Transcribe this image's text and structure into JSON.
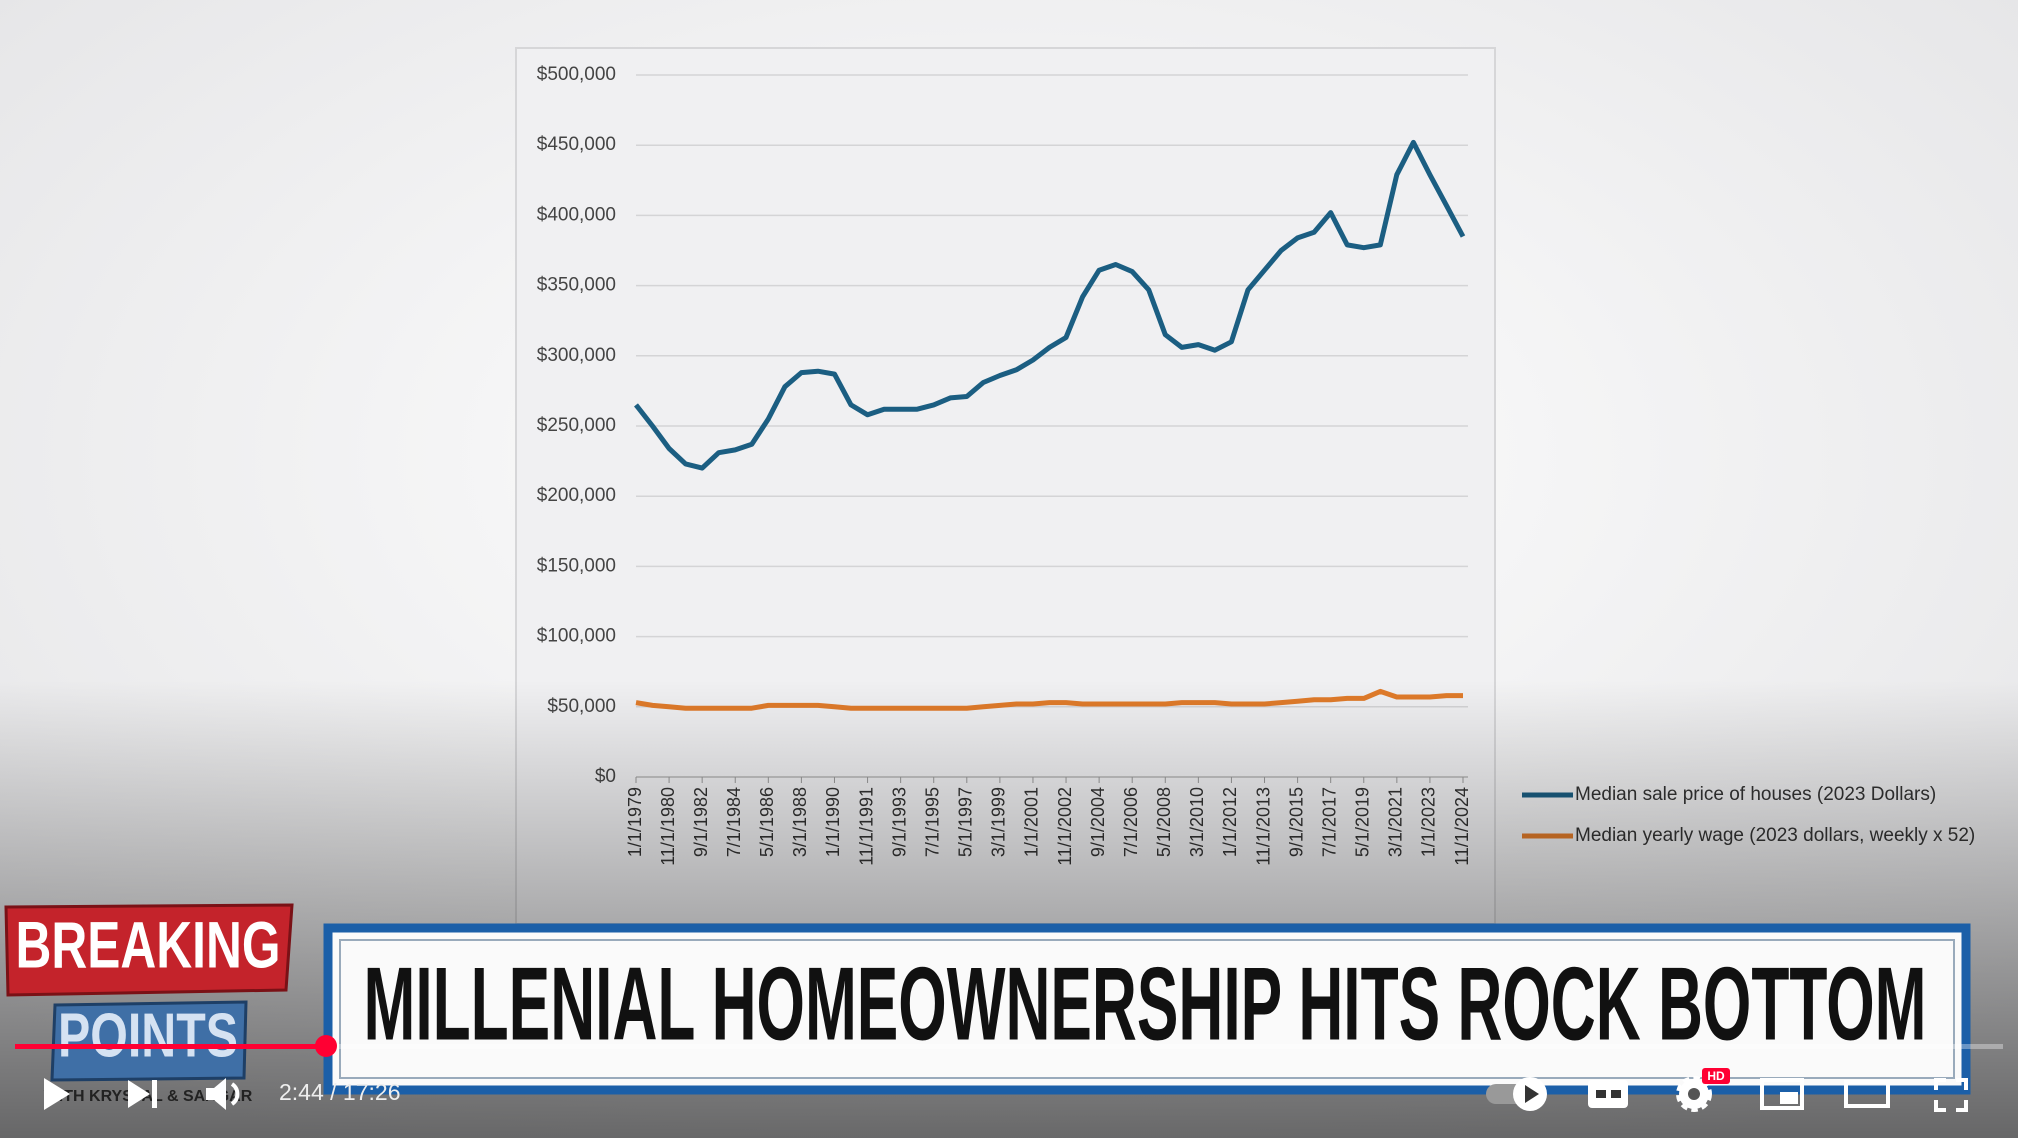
{
  "chart_data": {
    "type": "line",
    "categories": [
      "1/1/1979",
      null,
      "11/1/1980",
      null,
      "9/1/1982",
      null,
      "7/1/1984",
      null,
      "5/1/1986",
      null,
      "3/1/1988",
      null,
      "1/1/1990",
      null,
      "11/1/1991",
      null,
      "9/1/1993",
      null,
      "7/1/1995",
      null,
      "5/1/1997",
      null,
      "3/1/1999",
      null,
      "1/1/2001",
      null,
      "11/1/2002",
      null,
      "9/1/2004",
      null,
      "7/1/2006",
      null,
      "5/1/2008",
      null,
      "3/1/2010",
      null,
      "1/1/2012",
      null,
      "11/1/2013",
      null,
      "9/1/2015",
      null,
      "7/1/2017",
      null,
      "5/1/2019",
      null,
      "3/1/2021",
      null,
      "1/1/2023",
      null,
      "11/1/2024"
    ],
    "series": [
      {
        "name": "Median sale price of houses (2023 Dollars)",
        "color": "#1b5e82",
        "values": [
          265000,
          250000,
          234000,
          223000,
          220000,
          231000,
          233000,
          237000,
          255000,
          278000,
          288000,
          289000,
          287000,
          265000,
          258000,
          262000,
          262000,
          262000,
          265000,
          270000,
          271000,
          281000,
          286000,
          290000,
          297000,
          306000,
          313000,
          342000,
          361000,
          365000,
          360000,
          347000,
          315000,
          306000,
          308000,
          304000,
          310000,
          347000,
          361000,
          375000,
          384000,
          388000,
          402000,
          379000,
          377000,
          379000,
          429000,
          452000,
          429000,
          407000,
          385000
        ]
      },
      {
        "name": "Median yearly wage (2023 dollars, weekly x 52)",
        "color": "#e07b2a",
        "values": [
          53000,
          51000,
          50000,
          49000,
          49000,
          49000,
          49000,
          49000,
          51000,
          51000,
          51000,
          51000,
          50000,
          49000,
          49000,
          49000,
          49000,
          49000,
          49000,
          49000,
          49000,
          50000,
          51000,
          52000,
          52000,
          53000,
          53000,
          52000,
          52000,
          52000,
          52000,
          52000,
          52000,
          53000,
          53000,
          53000,
          52000,
          52000,
          52000,
          53000,
          54000,
          55000,
          55000,
          56000,
          56000,
          61000,
          57000,
          57000,
          57000,
          58000,
          58000
        ]
      }
    ],
    "ylim": [
      0,
      500000
    ],
    "yticks": [
      {
        "value": 0,
        "label": "$0"
      },
      {
        "value": 50000,
        "label": "$50,000"
      },
      {
        "value": 100000,
        "label": "$100,000"
      },
      {
        "value": 150000,
        "label": "$150,000"
      },
      {
        "value": 200000,
        "label": "$200,000"
      },
      {
        "value": 250000,
        "label": "$250,000"
      },
      {
        "value": 300000,
        "label": "$300,000"
      },
      {
        "value": 350000,
        "label": "$350,000"
      },
      {
        "value": 400000,
        "label": "$400,000"
      },
      {
        "value": 450000,
        "label": "$450,000"
      },
      {
        "value": 500000,
        "label": "$500,000"
      }
    ],
    "grid": true,
    "legend": "right"
  },
  "banner": {
    "logo_top": "BREAKING",
    "logo_bottom": "POINTS",
    "logo_hosts": "WITH KRYSTAL & SAAGAR",
    "headline": "MILLENIAL HOMEOWNERSHIP HITS ROCK BOTTOM"
  },
  "player": {
    "time": "2:44 / 17:26",
    "quality_badge": "HD"
  }
}
